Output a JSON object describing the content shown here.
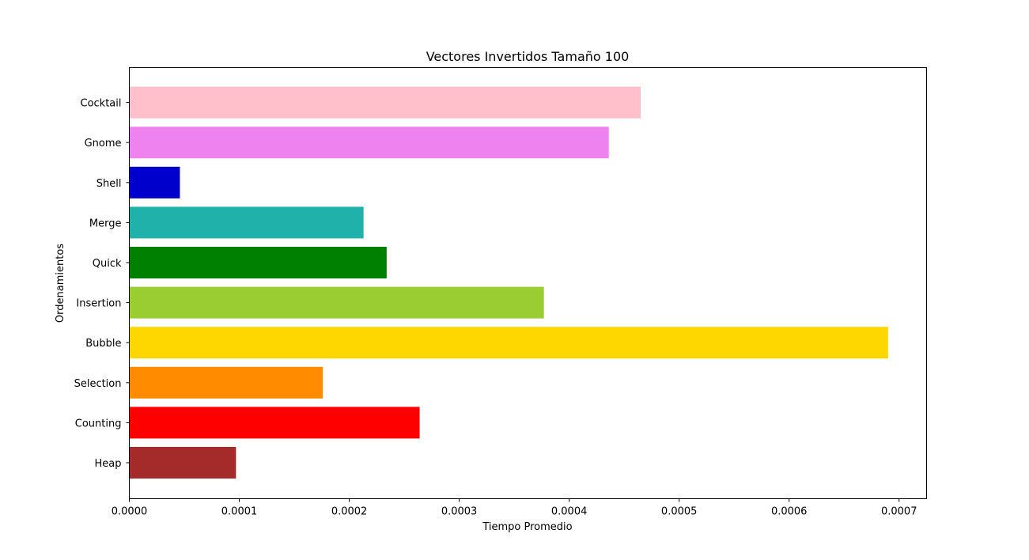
{
  "chart_data": {
    "type": "bar",
    "orientation": "horizontal",
    "title": "Vectores Invertidos Tamaño 100",
    "xlabel": "Tiempo Promedio",
    "ylabel": "Ordenamientos",
    "categories": [
      "Heap",
      "Counting",
      "Selection",
      "Bubble",
      "Insertion",
      "Quick",
      "Merge",
      "Shell",
      "Gnome",
      "Cocktail"
    ],
    "values": [
      9.7e-05,
      0.000264,
      0.000176,
      0.00069,
      0.000377,
      0.000234,
      0.000213,
      4.6e-05,
      0.000436,
      0.000465
    ],
    "colors": [
      "#a52a2a",
      "#ff0000",
      "#ff8c00",
      "#ffd700",
      "#9acd32",
      "#008000",
      "#20b2aa",
      "#0000cd",
      "#ee82ee",
      "#ffc0cb"
    ],
    "xlim": [
      0,
      0.000725
    ],
    "xticks": [
      0,
      0.0001,
      0.0002,
      0.0003,
      0.0004,
      0.0005,
      0.0006,
      0.0007
    ],
    "xtick_labels": [
      "0.0000",
      "0.0001",
      "0.0002",
      "0.0003",
      "0.0004",
      "0.0005",
      "0.0006",
      "0.0007"
    ],
    "grid": false,
    "legend": "none"
  }
}
